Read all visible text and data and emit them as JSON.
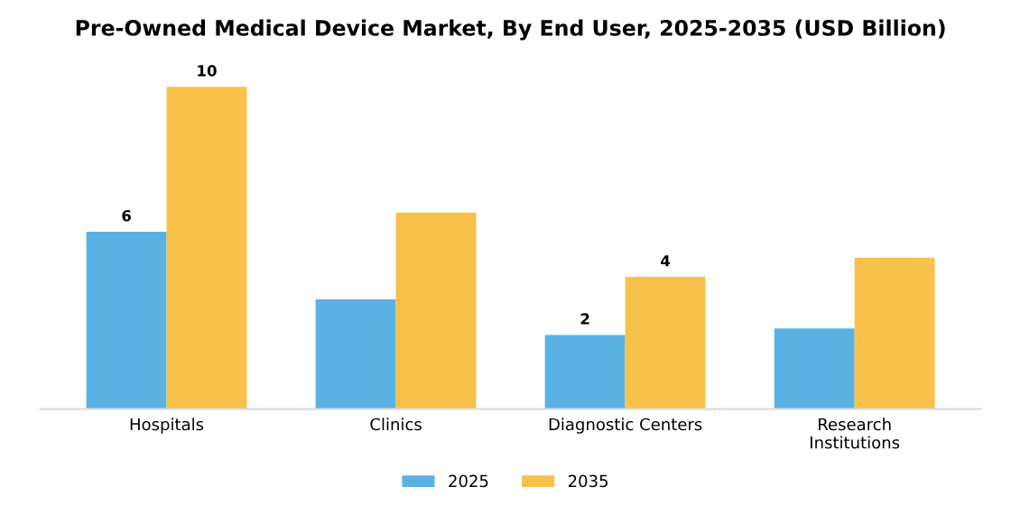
{
  "chart_data": {
    "type": "bar",
    "title": "Pre-Owned Medical Device Market, By End User, 2025-2035 (USD Billion)",
    "categories": [
      "Hospitals",
      "Clinics",
      "Diagnostic Centers",
      "Research\nInstitutions"
    ],
    "series": [
      {
        "name": "2025",
        "color": "#5ab1e4",
        "values": [
          5.5,
          3.4,
          2.3,
          2.5
        ],
        "value_labels": [
          "6",
          null,
          "2",
          null
        ]
      },
      {
        "name": "2035",
        "color": "#f7c14a",
        "values": [
          10,
          6.1,
          4.1,
          4.7
        ],
        "value_labels": [
          "10",
          null,
          "4",
          null
        ]
      }
    ],
    "tick_labels": "x",
    "grid": false,
    "legend": "bottom"
  }
}
